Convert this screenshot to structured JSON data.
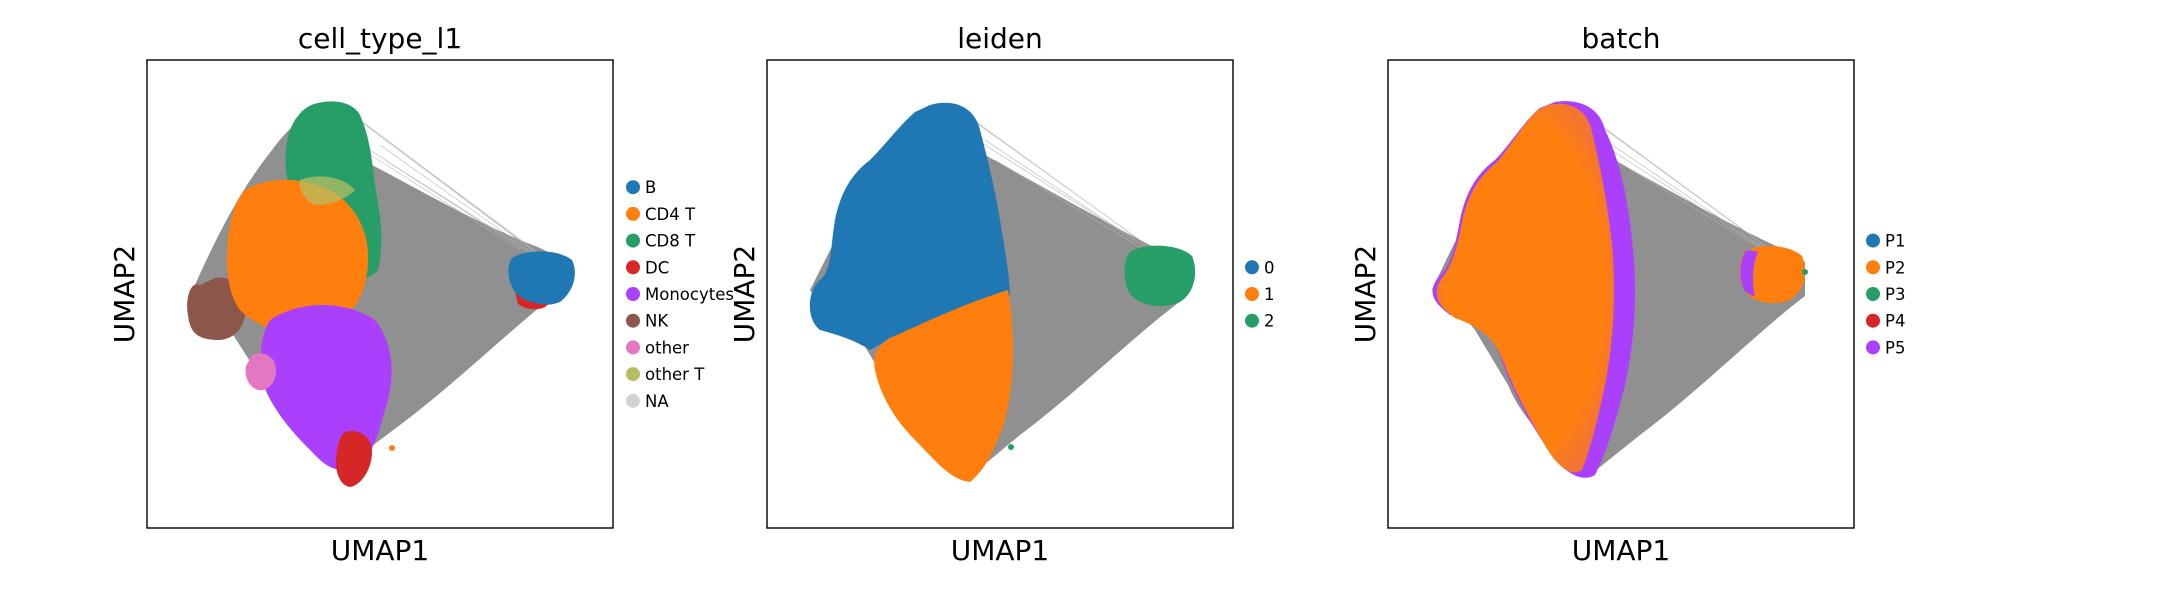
{
  "chart_data": [
    {
      "type": "scatter",
      "title": "cell_type_l1",
      "xlabel": "UMAP1",
      "ylabel": "UMAP2",
      "grid": false,
      "legend_position": "right",
      "edges": true,
      "edge_color": "#808080",
      "legend": [
        {
          "label": "B",
          "color": "#1f77b4"
        },
        {
          "label": "CD4 T",
          "color": "#ff7f0e"
        },
        {
          "label": "CD8 T",
          "color": "#279e68"
        },
        {
          "label": "DC",
          "color": "#d62728"
        },
        {
          "label": "Monocytes",
          "color": "#aa40fc"
        },
        {
          "label": "NK",
          "color": "#8c564b"
        },
        {
          "label": "other",
          "color": "#e377c2"
        },
        {
          "label": "other T",
          "color": "#b5bd61"
        },
        {
          "label": "NA",
          "color": "#d3d3d3"
        }
      ]
    },
    {
      "type": "scatter",
      "title": "leiden",
      "xlabel": "UMAP1",
      "ylabel": "UMAP2",
      "grid": false,
      "legend_position": "right",
      "edges": true,
      "edge_color": "#808080",
      "legend": [
        {
          "label": "0",
          "color": "#1f77b4"
        },
        {
          "label": "1",
          "color": "#ff7f0e"
        },
        {
          "label": "2",
          "color": "#279e68"
        }
      ]
    },
    {
      "type": "scatter",
      "title": "batch",
      "xlabel": "UMAP1",
      "ylabel": "UMAP2",
      "grid": false,
      "legend_position": "right",
      "edges": true,
      "edge_color": "#808080",
      "legend": [
        {
          "label": "P1",
          "color": "#1f77b4"
        },
        {
          "label": "P2",
          "color": "#ff7f0e"
        },
        {
          "label": "P3",
          "color": "#279e68"
        },
        {
          "label": "P4",
          "color": "#d62728"
        },
        {
          "label": "P5",
          "color": "#aa40fc"
        }
      ]
    }
  ]
}
